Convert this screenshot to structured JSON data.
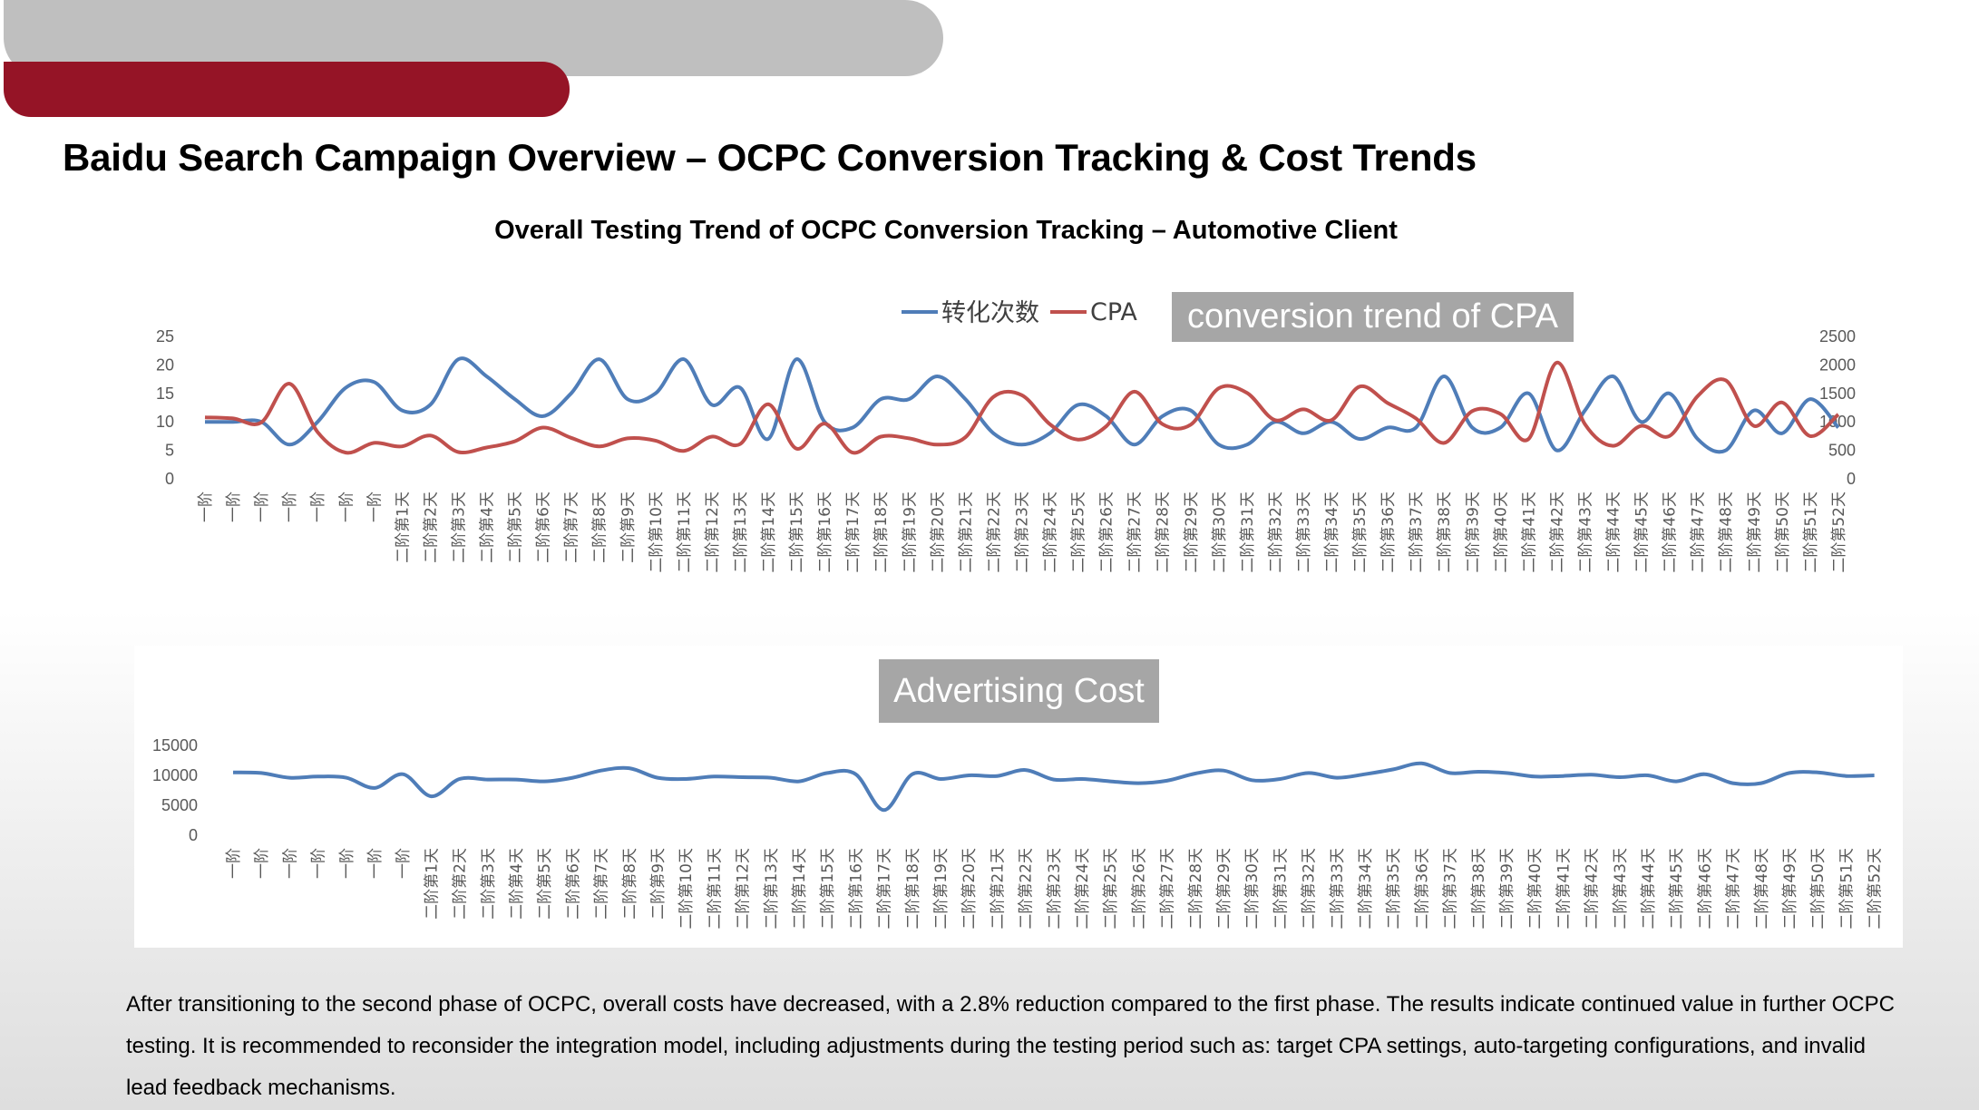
{
  "header": {
    "title": "Baidu Search Campaign Overview – OCPC Conversion Tracking & Cost Trends"
  },
  "colors": {
    "conversions": "#4f7db8",
    "cpa": "#c0504d",
    "cost": "#4f7db8",
    "brand_red": "#951426",
    "overlay_gray": "#a6a6a6"
  },
  "overlays": {
    "cpa_label": "conversion trend of CPA",
    "cost_label": "Advertising Cost"
  },
  "body": {
    "text": "After transitioning to the second phase of OCPC, overall costs have decreased, with a 2.8% reduction compared to the first phase. The results indicate continued value in further OCPC testing. It is recommended to reconsider the integration model, including adjustments during the testing period such as: target CPA settings, auto-targeting configurations, and invalid lead feedback mechanisms."
  },
  "chart_data": [
    {
      "type": "line",
      "title": "Overall Testing Trend of OCPC Conversion Tracking – Automotive Client",
      "legend_position": "top",
      "grid": false,
      "categories": [
        "一阶",
        "一阶",
        "一阶",
        "一阶",
        "一阶",
        "一阶",
        "一阶",
        "二阶第1天",
        "二阶第2天",
        "二阶第3天",
        "二阶第4天",
        "二阶第5天",
        "二阶第6天",
        "二阶第7天",
        "二阶第8天",
        "二阶第9天",
        "二阶第10天",
        "二阶第11天",
        "二阶第12天",
        "二阶第13天",
        "二阶第14天",
        "二阶第15天",
        "二阶第16天",
        "二阶第17天",
        "二阶第18天",
        "二阶第19天",
        "二阶第20天",
        "二阶第21天",
        "二阶第22天",
        "二阶第23天",
        "二阶第24天",
        "二阶第25天",
        "二阶第26天",
        "二阶第27天",
        "二阶第28天",
        "二阶第29天",
        "二阶第30天",
        "二阶第31天",
        "二阶第32天",
        "二阶第33天",
        "二阶第34天",
        "二阶第35天",
        "二阶第36天",
        "二阶第37天",
        "二阶第38天",
        "二阶第39天",
        "二阶第40天",
        "二阶第41天",
        "二阶第42天",
        "二阶第43天",
        "二阶第44天",
        "二阶第45天",
        "二阶第46天",
        "二阶第47天",
        "二阶第48天",
        "二阶第49天",
        "二阶第50天",
        "二阶第51天",
        "二阶第52天"
      ],
      "y_left": {
        "ticks": [
          0,
          5,
          10,
          15,
          20,
          25
        ],
        "ylim": [
          0,
          25
        ]
      },
      "y_right": {
        "ticks": [
          0,
          500,
          1000,
          1500,
          2000,
          2500
        ],
        "ylim": [
          0,
          2500
        ]
      },
      "series": [
        {
          "name": "转化次数",
          "axis": "left",
          "color": "#4f7db8",
          "values": [
            10,
            10,
            10,
            6,
            10,
            16,
            17,
            12,
            13,
            21,
            18,
            14,
            11,
            15,
            21,
            14,
            15,
            21,
            13,
            16,
            7,
            21,
            10,
            9,
            14,
            14,
            18,
            14,
            8,
            6,
            8,
            13,
            11,
            6,
            11,
            12,
            6,
            6,
            10,
            8,
            10,
            7,
            9,
            9,
            18,
            9,
            9,
            15,
            5,
            12,
            18,
            10,
            15,
            7,
            5,
            12,
            8,
            14,
            9
          ],
          "values_note": ""
        },
        {
          "name": "CPA",
          "axis": "right",
          "color": "#c0504d",
          "values": [
            1080,
            1060,
            990,
            1670,
            820,
            460,
            630,
            570,
            760,
            470,
            550,
            660,
            900,
            720,
            570,
            710,
            670,
            490,
            740,
            610,
            1310,
            530,
            970,
            460,
            740,
            710,
            600,
            730,
            1440,
            1470,
            960,
            690,
            920,
            1530,
            960,
            950,
            1590,
            1510,
            1030,
            1220,
            1030,
            1620,
            1330,
            1060,
            630,
            1190,
            1140,
            700,
            2040,
            960,
            580,
            930,
            750,
            1450,
            1730,
            930,
            1340,
            750,
            1130
          ]
        }
      ]
    },
    {
      "type": "line",
      "title": "Advertising Cost",
      "grid": false,
      "categories": [
        "一阶",
        "一阶",
        "一阶",
        "一阶",
        "一阶",
        "一阶",
        "一阶",
        "二阶第1天",
        "二阶第2天",
        "二阶第3天",
        "二阶第4天",
        "二阶第5天",
        "二阶第6天",
        "二阶第7天",
        "二阶第8天",
        "二阶第9天",
        "二阶第10天",
        "二阶第11天",
        "二阶第12天",
        "二阶第13天",
        "二阶第14天",
        "二阶第15天",
        "二阶第16天",
        "二阶第17天",
        "二阶第18天",
        "二阶第19天",
        "二阶第20天",
        "二阶第21天",
        "二阶第22天",
        "二阶第23天",
        "二阶第24天",
        "二阶第25天",
        "二阶第26天",
        "二阶第27天",
        "二阶第28天",
        "二阶第29天",
        "二阶第30天",
        "二阶第31天",
        "二阶第32天",
        "二阶第33天",
        "二阶第34天",
        "二阶第35天",
        "二阶第36天",
        "二阶第37天",
        "二阶第38天",
        "二阶第39天",
        "二阶第40天",
        "二阶第41天",
        "二阶第42天",
        "二阶第43天",
        "二阶第44天",
        "二阶第45天",
        "二阶第46天",
        "二阶第47天",
        "二阶第48天",
        "二阶第49天",
        "二阶第50天",
        "二阶第51天",
        "二阶第52天"
      ],
      "ylim": [
        0,
        15000
      ],
      "y_ticks": [
        0,
        5000,
        10000,
        15000
      ],
      "series": [
        {
          "name": "",
          "color": "#4f7db8",
          "values": [
            10500,
            10400,
            9600,
            9800,
            9600,
            7900,
            10200,
            6500,
            9400,
            9300,
            9300,
            9000,
            9600,
            10800,
            11200,
            9600,
            9400,
            9800,
            9700,
            9600,
            9000,
            10400,
            10200,
            4200,
            10200,
            9400,
            10000,
            9900,
            10900,
            9300,
            9400,
            9000,
            8700,
            9100,
            10300,
            10800,
            9200,
            9400,
            10400,
            9600,
            10200,
            11000,
            12000,
            10400,
            10600,
            10400,
            9800,
            9900,
            10100,
            9700,
            10000,
            9000,
            10200,
            8700,
            8700,
            10400,
            10500,
            9900,
            10000
          ]
        }
      ]
    }
  ]
}
